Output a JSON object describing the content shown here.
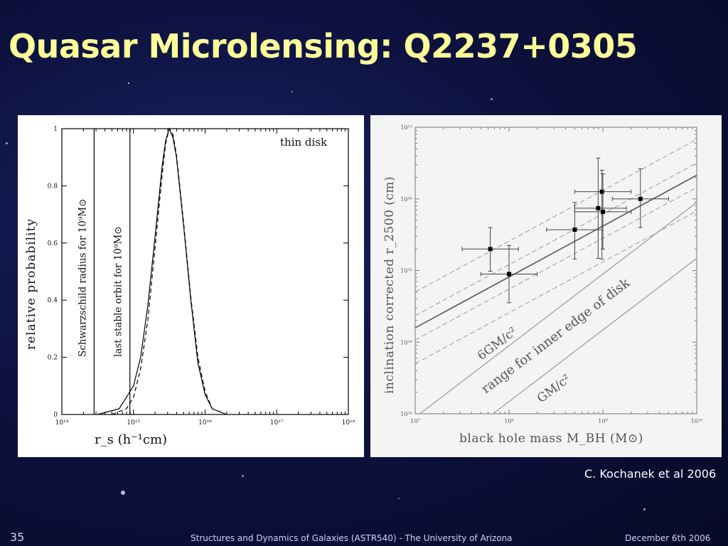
{
  "slide": {
    "title": "Quasar Microlensing: Q2237+0305",
    "credit": "C. Kochanek et al 2006",
    "number": "35",
    "footer_center": "Structures and Dynamics of Galaxies (ASTR540) - The University of Arizona",
    "footer_date": "December 6th 2006",
    "title_color": "#ffff99"
  },
  "chart_data": [
    {
      "type": "line",
      "xlabel": "r_s (h⁻¹cm)",
      "ylabel": "relative probability",
      "xscale": "log",
      "xlim": [
        100000000000000.0,
        1e+18
      ],
      "ylim": [
        0,
        1
      ],
      "x_ticks": [
        "10¹⁴",
        "10¹⁵",
        "10¹⁶",
        "10¹⁷",
        "10¹⁸"
      ],
      "y_ticks": [
        "0",
        "0.2",
        "0.4",
        "0.6",
        "0.8",
        "1"
      ],
      "series_annotation": "thin disk",
      "curve_solid": {
        "x_log10": [
          14.5,
          14.8,
          15.0,
          15.1,
          15.2,
          15.3,
          15.4,
          15.45,
          15.5,
          15.55,
          15.6,
          15.7,
          15.8,
          15.9,
          16.0,
          16.1,
          16.3
        ],
        "y": [
          0.0,
          0.02,
          0.1,
          0.2,
          0.38,
          0.62,
          0.87,
          0.96,
          1.0,
          0.97,
          0.9,
          0.66,
          0.4,
          0.18,
          0.07,
          0.02,
          0.0
        ]
      },
      "curve_dashed": {
        "x_log10": [
          14.7,
          14.9,
          15.0,
          15.1,
          15.2,
          15.3,
          15.4,
          15.45,
          15.5,
          15.55,
          15.6,
          15.7,
          15.8,
          15.9,
          16.0,
          16.1,
          16.3
        ],
        "y": [
          0.0,
          0.02,
          0.06,
          0.16,
          0.33,
          0.58,
          0.84,
          0.95,
          1.0,
          0.98,
          0.91,
          0.67,
          0.41,
          0.2,
          0.08,
          0.02,
          0.0
        ]
      },
      "vertical_lines": [
        {
          "x_log10": 14.45,
          "label": "Schwarzschild radius for 10⁹M⊙"
        },
        {
          "x_log10": 14.95,
          "label": "last stable orbit for 10⁹M⊙"
        }
      ]
    },
    {
      "type": "scatter",
      "xlabel": "black hole mass M_BH (M⊙)",
      "ylabel": "inclination corrected r_2500 (cm)",
      "xscale": "log",
      "yscale": "log",
      "xlim": [
        10000000.0,
        10000000000.0
      ],
      "ylim": [
        10000000000000.0,
        1e+17
      ],
      "x_ticks": [
        "10⁷",
        "10⁸",
        "10⁹",
        "10¹⁰"
      ],
      "y_ticks": [
        "10¹³",
        "10¹⁴",
        "10¹⁵",
        "10¹⁶",
        "10¹⁷"
      ],
      "points": [
        {
          "logM": 7.8,
          "logR": 15.3,
          "xerr": [
            7.5,
            8.1
          ],
          "yerr": [
            14.99,
            15.6
          ]
        },
        {
          "logM": 8.0,
          "logR": 14.95,
          "xerr": [
            7.7,
            8.3
          ],
          "yerr": [
            14.55,
            15.35
          ]
        },
        {
          "logM": 8.7,
          "logR": 15.57,
          "xerr": [
            8.4,
            9.0
          ],
          "yerr": [
            15.16,
            15.95
          ]
        },
        {
          "logM": 8.95,
          "logR": 15.87,
          "xerr": [
            8.7,
            9.25
          ],
          "yerr": [
            15.17,
            16.57
          ]
        },
        {
          "logM": 8.99,
          "logR": 16.1,
          "xerr": [
            8.7,
            9.3
          ],
          "yerr": [
            15.16,
            16.4
          ]
        },
        {
          "logM": 9.0,
          "logR": 15.82,
          "xerr": [
            8.7,
            9.3
          ],
          "yerr": [
            15.3,
            16.35
          ]
        },
        {
          "logM": 9.4,
          "logR": 16.0,
          "xerr": [
            9.1,
            9.7
          ],
          "yerr": [
            15.6,
            16.42
          ]
        }
      ],
      "fit_line": {
        "slope": 0.71,
        "intercept_at_logM7": 14.2
      },
      "fit_band_offsets": [
        -0.17,
        0.17,
        0.5
      ],
      "lower_band_offset": -0.5,
      "isco_line": {
        "label": "6GM/c²",
        "logR_at_logM7": 12.95,
        "slope": 1.0
      },
      "gravitational_radius_line": {
        "label": "GM/c²",
        "logR_at_logM7": 12.17,
        "slope": 1.0
      },
      "band_label": "range for inner edge of disk"
    }
  ]
}
